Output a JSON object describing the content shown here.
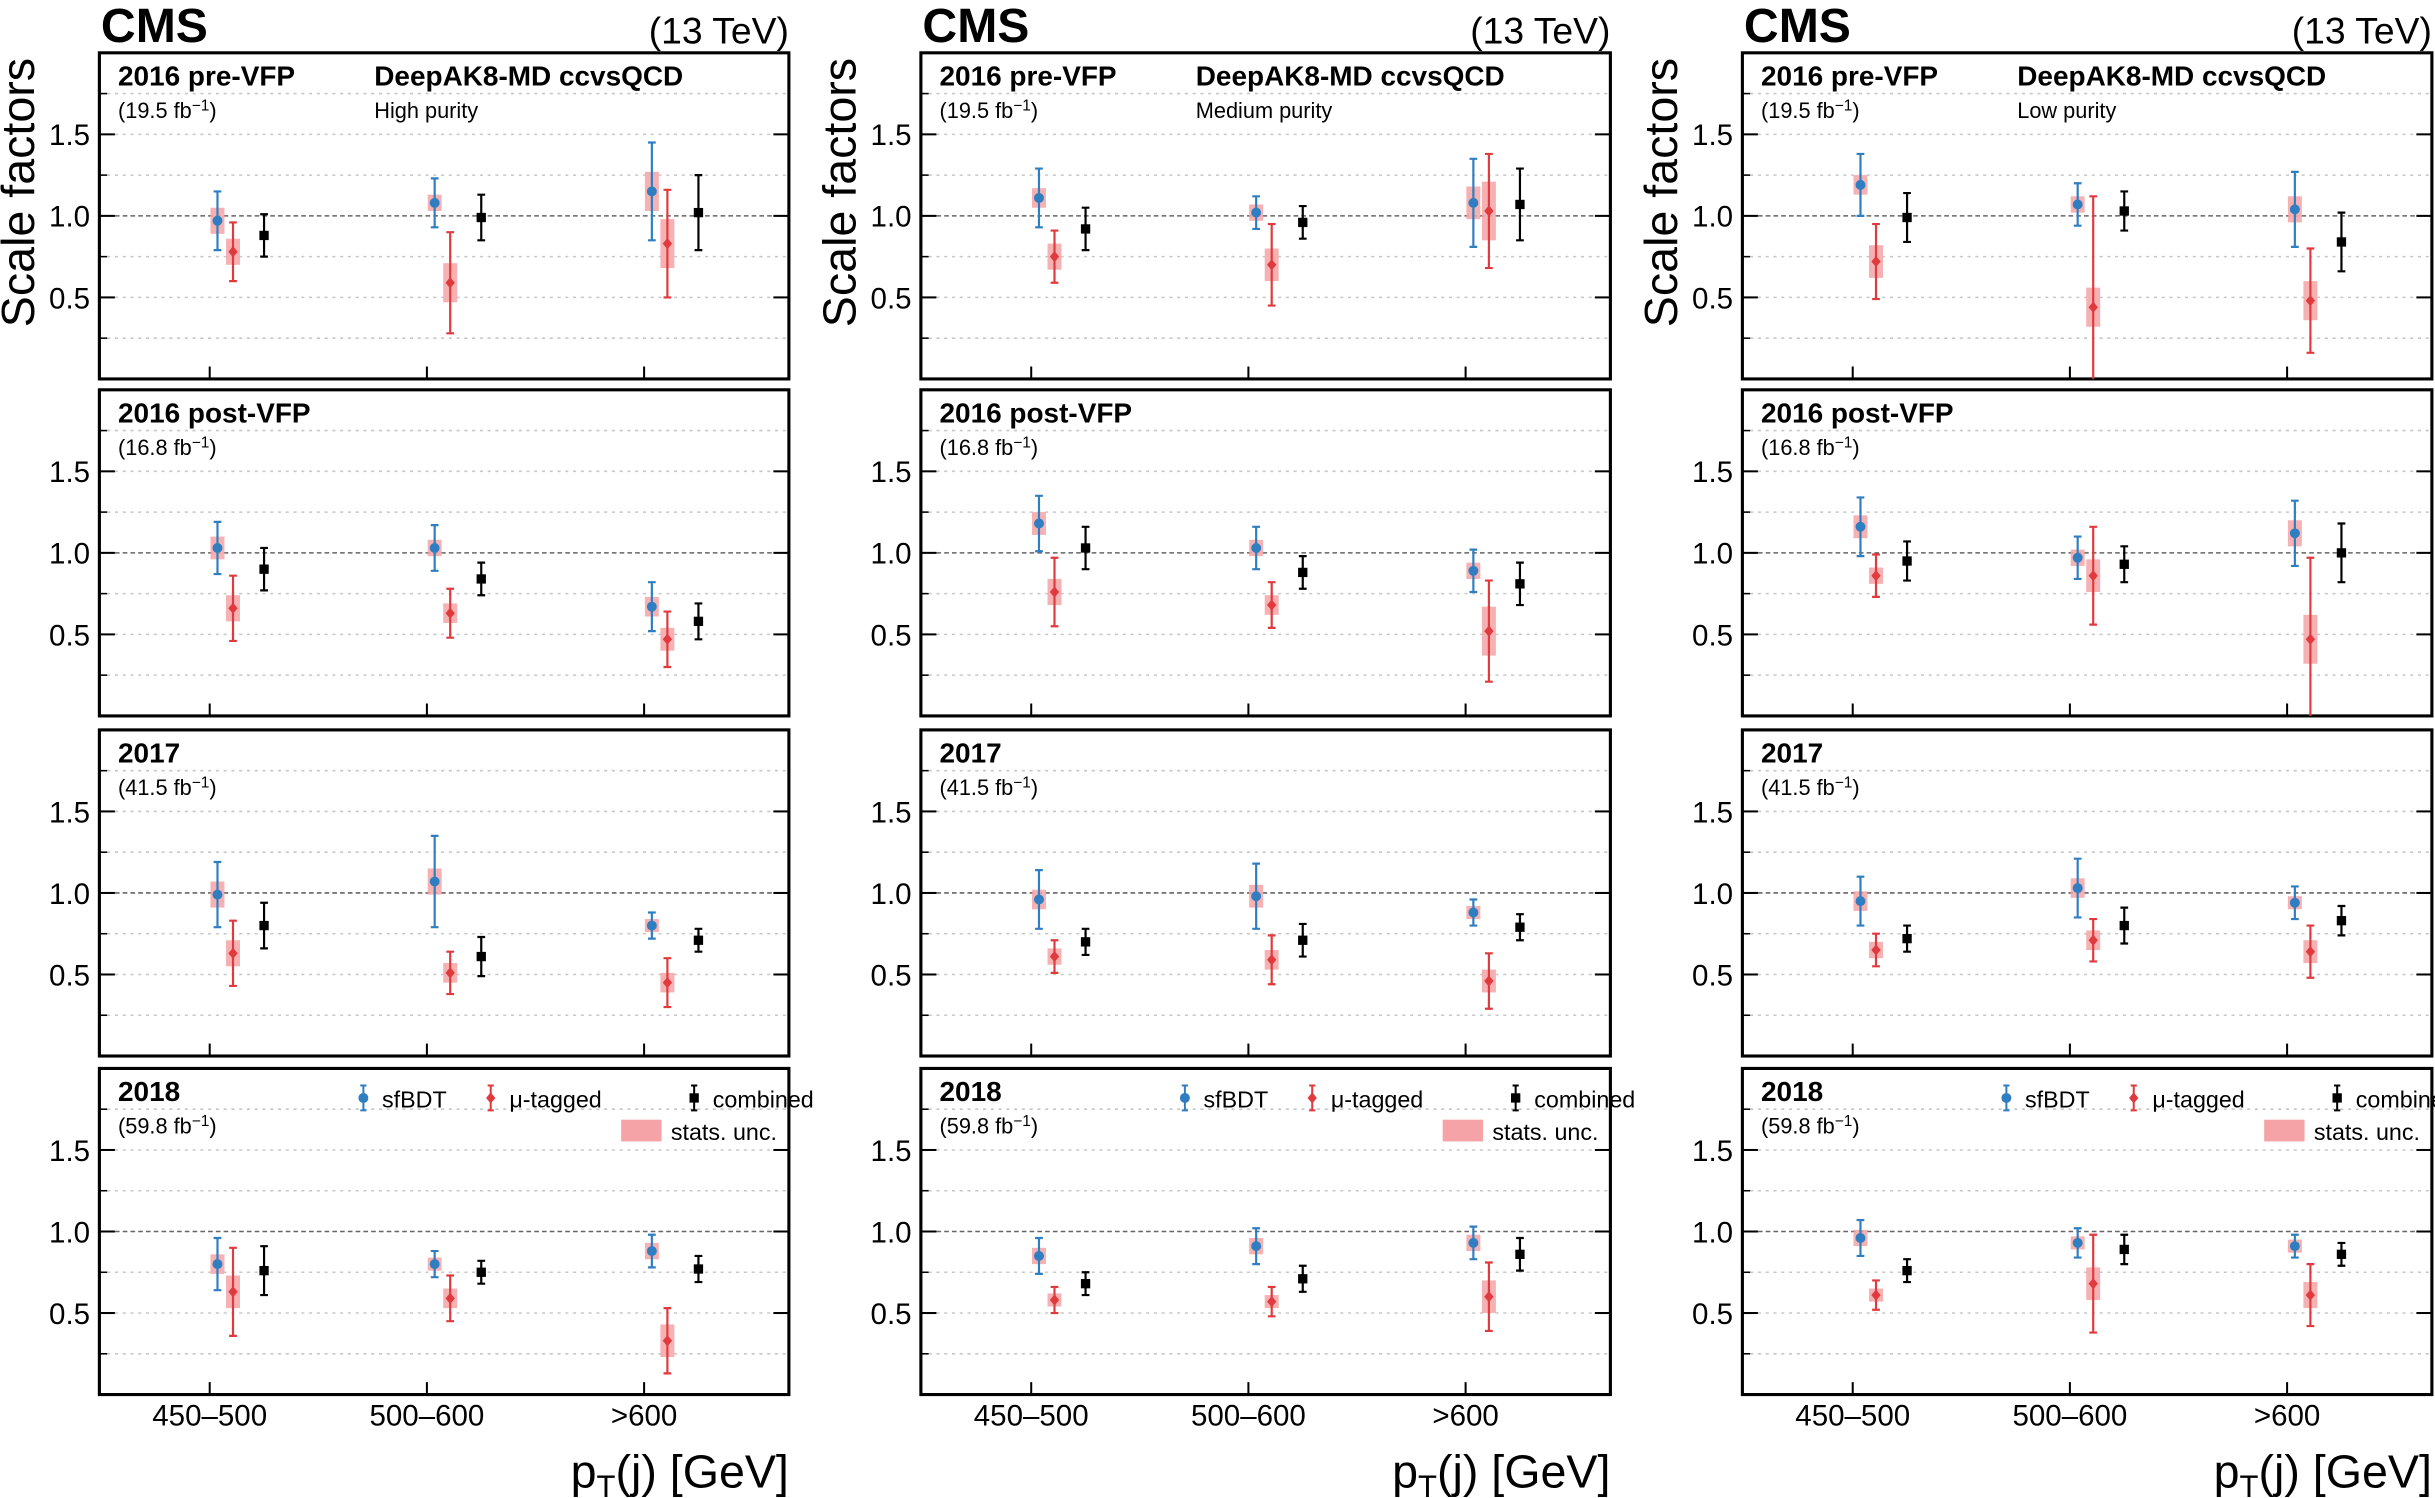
{
  "chart_data": {
    "type": "errorbar",
    "experiment": "CMS",
    "energy": "(13 TeV)",
    "y_label": "Scale factors",
    "x_label": [
      "p",
      "T",
      "(j) [GeV]"
    ],
    "categories": [
      "450–500",
      "500–600",
      ">600"
    ],
    "ylim": [
      0,
      2
    ],
    "yticks": [
      0.5,
      {
        "value": 1,
        "label": "1.0"
      },
      1.5
    ],
    "minor_yticks": [
      0.25,
      0.75,
      1.25,
      1.75
    ],
    "grid": true,
    "series": [
      {
        "name": "sfBDT",
        "color": "#2f7ec1",
        "marker": "circle"
      },
      {
        "name": "μ-tagged",
        "color": "#e03a3e",
        "marker": "diamond"
      },
      {
        "name": "combined",
        "color": "#000000",
        "marker": "square"
      }
    ],
    "stat_label": "stats. unc.",
    "stat_color": "#f5a3a6",
    "rows": [
      {
        "era": "2016 pre-VFP",
        "lumi": [
          "(19.5 fb",
          "−1",
          ")"
        ]
      },
      {
        "era": "2016 post-VFP",
        "lumi": [
          "(16.8 fb",
          "−1",
          ")"
        ]
      },
      {
        "era": "2017",
        "lumi": [
          "(41.5 fb",
          "−1",
          ")"
        ]
      },
      {
        "era": "2018",
        "lumi": [
          "(59.8 fb",
          "−1",
          ")"
        ]
      }
    ],
    "columns": [
      {
        "tagger": "DeepAK8-MD ccvsQCD",
        "purity": "High purity",
        "panels": [
          {
            "series": [
              {
                "values": [
                  0.97,
                  1.08,
                  1.15
                ],
                "errors": [
                  0.18,
                  0.15,
                  0.3
                ],
                "stats": [
                  0.08,
                  0.05,
                  0.12
                ]
              },
              {
                "values": [
                  0.78,
                  0.59,
                  0.83
                ],
                "errors": [
                  0.18,
                  0.31,
                  0.33
                ],
                "stats": [
                  0.08,
                  0.12,
                  0.15
                ]
              },
              {
                "values": [
                  0.88,
                  0.99,
                  1.02
                ],
                "errors": [
                  0.13,
                  0.14,
                  0.23
                ]
              }
            ]
          },
          {
            "series": [
              {
                "values": [
                  1.03,
                  1.03,
                  0.67
                ],
                "errors": [
                  0.16,
                  0.14,
                  0.15
                ],
                "stats": [
                  0.07,
                  0.05,
                  0.06
                ]
              },
              {
                "values": [
                  0.66,
                  0.63,
                  0.47
                ],
                "errors": [
                  0.2,
                  0.15,
                  0.17
                ],
                "stats": [
                  0.08,
                  0.06,
                  0.07
                ]
              },
              {
                "values": [
                  0.9,
                  0.84,
                  0.58
                ],
                "errors": [
                  0.13,
                  0.1,
                  0.11
                ]
              }
            ]
          },
          {
            "series": [
              {
                "values": [
                  0.99,
                  1.07,
                  0.8
                ],
                "errors": [
                  0.2,
                  0.28,
                  0.08
                ],
                "stats": [
                  0.08,
                  0.08,
                  0.04
                ]
              },
              {
                "values": [
                  0.63,
                  0.51,
                  0.45
                ],
                "errors": [
                  0.2,
                  0.13,
                  0.15
                ],
                "stats": [
                  0.08,
                  0.06,
                  0.06
                ]
              },
              {
                "values": [
                  0.8,
                  0.61,
                  0.71
                ],
                "errors": [
                  0.14,
                  0.12,
                  0.07
                ]
              }
            ]
          },
          {
            "series": [
              {
                "values": [
                  0.8,
                  0.8,
                  0.88
                ],
                "errors": [
                  0.16,
                  0.08,
                  0.1
                ],
                "stats": [
                  0.06,
                  0.04,
                  0.05
                ]
              },
              {
                "values": [
                  0.63,
                  0.59,
                  0.33
                ],
                "errors": [
                  0.27,
                  0.14,
                  0.2
                ],
                "stats": [
                  0.1,
                  0.06,
                  0.1
                ]
              },
              {
                "values": [
                  0.76,
                  0.75,
                  0.77
                ],
                "errors": [
                  0.15,
                  0.07,
                  0.08
                ]
              }
            ]
          }
        ]
      },
      {
        "tagger": "DeepAK8-MD ccvsQCD",
        "purity": "Medium purity",
        "panels": [
          {
            "series": [
              {
                "values": [
                  1.11,
                  1.02,
                  1.08
                ],
                "errors": [
                  0.18,
                  0.1,
                  0.27
                ],
                "stats": [
                  0.06,
                  0.05,
                  0.1
                ]
              },
              {
                "values": [
                  0.75,
                  0.7,
                  1.03
                ],
                "errors": [
                  0.16,
                  0.25,
                  0.35
                ],
                "stats": [
                  0.08,
                  0.1,
                  0.18
                ]
              },
              {
                "values": [
                  0.92,
                  0.96,
                  1.07
                ],
                "errors": [
                  0.13,
                  0.1,
                  0.22
                ]
              }
            ]
          },
          {
            "series": [
              {
                "values": [
                  1.18,
                  1.03,
                  0.89
                ],
                "errors": [
                  0.17,
                  0.13,
                  0.13
                ],
                "stats": [
                  0.07,
                  0.05,
                  0.05
                ]
              },
              {
                "values": [
                  0.76,
                  0.68,
                  0.52
                ],
                "errors": [
                  0.21,
                  0.14,
                  0.31
                ],
                "stats": [
                  0.08,
                  0.06,
                  0.15
                ]
              },
              {
                "values": [
                  1.03,
                  0.88,
                  0.81
                ],
                "errors": [
                  0.13,
                  0.1,
                  0.13
                ]
              }
            ]
          },
          {
            "series": [
              {
                "values": [
                  0.96,
                  0.98,
                  0.88
                ],
                "errors": [
                  0.18,
                  0.2,
                  0.08
                ],
                "stats": [
                  0.06,
                  0.07,
                  0.04
                ]
              },
              {
                "values": [
                  0.61,
                  0.59,
                  0.46
                ],
                "errors": [
                  0.1,
                  0.15,
                  0.17
                ],
                "stats": [
                  0.05,
                  0.06,
                  0.07
                ]
              },
              {
                "values": [
                  0.7,
                  0.71,
                  0.79
                ],
                "errors": [
                  0.08,
                  0.1,
                  0.08
                ]
              }
            ]
          },
          {
            "series": [
              {
                "values": [
                  0.85,
                  0.91,
                  0.93
                ],
                "errors": [
                  0.11,
                  0.11,
                  0.1
                ],
                "stats": [
                  0.05,
                  0.05,
                  0.05
                ]
              },
              {
                "values": [
                  0.58,
                  0.57,
                  0.6
                ],
                "errors": [
                  0.08,
                  0.09,
                  0.21
                ],
                "stats": [
                  0.04,
                  0.04,
                  0.1
                ]
              },
              {
                "values": [
                  0.68,
                  0.71,
                  0.86
                ],
                "errors": [
                  0.07,
                  0.08,
                  0.1
                ]
              }
            ]
          }
        ]
      },
      {
        "tagger": "DeepAK8-MD ccvsQCD",
        "purity": "Low purity",
        "panels": [
          {
            "series": [
              {
                "values": [
                  1.19,
                  1.07,
                  1.04
                ],
                "errors": [
                  0.19,
                  0.13,
                  0.23
                ],
                "stats": [
                  0.06,
                  0.05,
                  0.08
                ]
              },
              {
                "values": [
                  0.72,
                  0.44,
                  0.48
                ],
                "errors": [
                  0.23,
                  0.68,
                  0.32
                ],
                "stats": [
                  0.1,
                  0.12,
                  0.12
                ]
              },
              {
                "values": [
                  0.99,
                  1.03,
                  0.84
                ],
                "errors": [
                  0.15,
                  0.12,
                  0.18
                ]
              }
            ]
          },
          {
            "series": [
              {
                "values": [
                  1.16,
                  0.97,
                  1.12
                ],
                "errors": [
                  0.18,
                  0.13,
                  0.2
                ],
                "stats": [
                  0.07,
                  0.05,
                  0.08
                ]
              },
              {
                "values": [
                  0.86,
                  0.86,
                  0.47
                ],
                "errors": [
                  0.13,
                  0.3,
                  0.5
                ],
                "stats": [
                  0.05,
                  0.1,
                  0.15
                ]
              },
              {
                "values": [
                  0.95,
                  0.93,
                  1.0
                ],
                "errors": [
                  0.12,
                  0.11,
                  0.18
                ]
              }
            ]
          },
          {
            "series": [
              {
                "values": [
                  0.95,
                  1.03,
                  0.94
                ],
                "errors": [
                  0.15,
                  0.18,
                  0.1
                ],
                "stats": [
                  0.06,
                  0.06,
                  0.04
                ]
              },
              {
                "values": [
                  0.65,
                  0.71,
                  0.64
                ],
                "errors": [
                  0.1,
                  0.13,
                  0.16
                ],
                "stats": [
                  0.05,
                  0.06,
                  0.07
                ]
              },
              {
                "values": [
                  0.72,
                  0.8,
                  0.83
                ],
                "errors": [
                  0.08,
                  0.11,
                  0.09
                ]
              }
            ]
          },
          {
            "series": [
              {
                "values": [
                  0.96,
                  0.93,
                  0.91
                ],
                "errors": [
                  0.11,
                  0.09,
                  0.07
                ],
                "stats": [
                  0.05,
                  0.04,
                  0.04
                ]
              },
              {
                "values": [
                  0.61,
                  0.68,
                  0.61
                ],
                "errors": [
                  0.09,
                  0.3,
                  0.19
                ],
                "stats": [
                  0.04,
                  0.1,
                  0.08
                ]
              },
              {
                "values": [
                  0.76,
                  0.89,
                  0.86
                ],
                "errors": [
                  0.07,
                  0.09,
                  0.07
                ]
              }
            ]
          }
        ]
      }
    ]
  }
}
